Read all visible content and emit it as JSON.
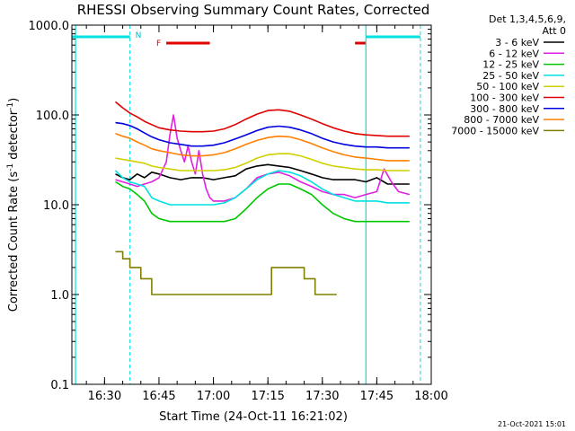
{
  "chart_data": {
    "type": "line",
    "title": "RHESSI Observing Summary Count Rates, Corrected",
    "xlabel": "Start Time (24-Oct-11 16:21:02)",
    "ylabel_main": "Corrected Count Rate (s",
    "ylabel_exp": "-1",
    "ylabel_mid": " detector",
    "ylabel_end": ")",
    "y_scale": "log",
    "ylim": [
      0.1,
      1000
    ],
    "xlim_minutes": [
      0,
      99
    ],
    "x_tick_minutes": [
      9,
      24,
      39,
      54,
      69,
      84,
      99
    ],
    "x_tick_labels": [
      "16:30",
      "16:45",
      "17:00",
      "17:15",
      "17:30",
      "17:45",
      "18:00"
    ],
    "y_ticks": [
      0.1,
      1,
      10,
      100,
      1000
    ],
    "y_tick_labels": [
      "0.1",
      "1.0",
      "10.0",
      "100.0",
      "1000.0"
    ],
    "grid": false,
    "legend_position": "top-right, outside plot",
    "legend_header": [
      "Det 1,3,4,5,6,9,",
      "Att 0"
    ],
    "timestamp": "21-Oct-2021 15:01",
    "series": [
      {
        "name": "3 - 6 keV",
        "color": "#000000",
        "x": [
          12,
          14,
          16,
          18,
          20,
          22,
          24,
          27,
          30,
          33,
          36,
          39,
          42,
          45,
          48,
          51,
          54,
          57,
          60,
          63,
          66,
          69,
          72,
          75,
          78,
          81,
          84,
          87,
          90,
          93
        ],
        "y": [
          22,
          20,
          19,
          22,
          20,
          23,
          22,
          20,
          19,
          20,
          20,
          19,
          20,
          21,
          25,
          27,
          28,
          27,
          26,
          24,
          22,
          20,
          19,
          19,
          19,
          18,
          20,
          17,
          17,
          17
        ]
      },
      {
        "name": "6 - 12 keV",
        "color": "#e020e0",
        "x": [
          12,
          14,
          16,
          18,
          20,
          22,
          24,
          26,
          27,
          28,
          29,
          30,
          31,
          32,
          33,
          34,
          35,
          36,
          37,
          38,
          39,
          42,
          45,
          48,
          51,
          54,
          57,
          60,
          63,
          66,
          69,
          72,
          75,
          78,
          81,
          84,
          86,
          88,
          90,
          93
        ],
        "y": [
          19,
          18,
          17,
          16,
          17,
          18,
          20,
          30,
          60,
          100,
          55,
          40,
          30,
          45,
          30,
          22,
          40,
          22,
          15,
          12,
          11,
          11,
          12,
          15,
          20,
          22,
          23,
          21,
          18,
          16,
          14,
          13,
          13,
          12,
          13,
          14,
          25,
          18,
          14,
          13
        ]
      },
      {
        "name": "12 - 25 keV",
        "color": "#00c800",
        "x": [
          12,
          14,
          16,
          18,
          20,
          22,
          24,
          27,
          30,
          33,
          36,
          39,
          42,
          45,
          48,
          51,
          54,
          57,
          60,
          63,
          66,
          69,
          72,
          75,
          78,
          81,
          84,
          87,
          90,
          93
        ],
        "y": [
          18,
          16,
          15,
          13,
          11,
          8,
          7,
          6.5,
          6.5,
          6.5,
          6.5,
          6.5,
          6.5,
          7,
          9,
          12,
          15,
          17,
          17,
          15,
          13,
          10,
          8,
          7,
          6.5,
          6.5,
          6.5,
          6.5,
          6.5,
          6.5
        ]
      },
      {
        "name": "25 - 50 keV",
        "color": "#00e0e0",
        "x": [
          12,
          14,
          16,
          18,
          20,
          22,
          24,
          27,
          30,
          33,
          36,
          39,
          42,
          45,
          48,
          51,
          54,
          57,
          60,
          63,
          66,
          69,
          72,
          75,
          78,
          81,
          84,
          87,
          90,
          93
        ],
        "y": [
          24,
          20,
          18,
          17,
          16,
          12,
          11,
          10,
          10,
          10,
          10,
          10,
          10.5,
          12,
          15,
          19,
          22,
          24,
          23,
          21,
          18,
          15,
          13,
          12,
          11,
          11,
          11,
          10.5,
          10.5,
          10.5
        ]
      },
      {
        "name": "50 - 100 keV",
        "color": "#d0d000",
        "x": [
          12,
          14,
          16,
          18,
          20,
          22,
          24,
          27,
          30,
          33,
          36,
          39,
          42,
          45,
          48,
          51,
          54,
          57,
          60,
          63,
          66,
          69,
          72,
          75,
          78,
          81,
          84,
          87,
          90,
          93
        ],
        "y": [
          33,
          32,
          31,
          30,
          29,
          27,
          26,
          25,
          24,
          24,
          24,
          24,
          24.5,
          26,
          29,
          33,
          36,
          37,
          37,
          35,
          32,
          29,
          27,
          26,
          25,
          24.5,
          24.5,
          24,
          24,
          24
        ]
      },
      {
        "name": "100 - 300 keV",
        "color": "#e00000",
        "x": [
          12,
          14,
          16,
          18,
          20,
          22,
          24,
          27,
          30,
          33,
          36,
          39,
          42,
          45,
          48,
          51,
          54,
          57,
          60,
          63,
          66,
          69,
          72,
          75,
          78,
          81,
          84,
          87,
          90,
          93
        ],
        "y": [
          140,
          120,
          105,
          95,
          85,
          78,
          72,
          68,
          66,
          65,
          65,
          66,
          70,
          78,
          90,
          102,
          112,
          114,
          110,
          100,
          90,
          80,
          72,
          66,
          62,
          60,
          59,
          58,
          58,
          58
        ]
      },
      {
        "name": "300 - 800 keV",
        "color": "#0000e0",
        "x": [
          12,
          14,
          16,
          18,
          20,
          22,
          24,
          27,
          30,
          33,
          36,
          39,
          42,
          45,
          48,
          51,
          54,
          57,
          60,
          63,
          66,
          69,
          72,
          75,
          78,
          81,
          84,
          87,
          90,
          93
        ],
        "y": [
          82,
          80,
          76,
          70,
          63,
          57,
          53,
          49,
          47,
          45,
          45,
          46,
          49,
          54,
          60,
          67,
          73,
          75,
          73,
          68,
          62,
          55,
          50,
          47,
          45,
          44,
          44,
          43,
          43,
          43
        ]
      },
      {
        "name": "800 - 7000 keV",
        "color": "#ff8000",
        "x": [
          12,
          14,
          16,
          18,
          20,
          22,
          24,
          27,
          30,
          33,
          36,
          39,
          42,
          45,
          48,
          51,
          54,
          57,
          60,
          63,
          66,
          69,
          72,
          75,
          78,
          81,
          84,
          87,
          90,
          93
        ],
        "y": [
          62,
          58,
          55,
          50,
          46,
          42,
          40,
          38,
          36,
          35,
          35,
          36,
          38,
          42,
          47,
          52,
          56,
          58,
          57,
          53,
          48,
          43,
          39,
          36,
          34,
          33,
          32,
          31,
          31,
          31
        ]
      },
      {
        "name": "7000 - 15000 keV",
        "color": "#808000",
        "x": [
          12,
          13,
          14,
          15,
          16,
          17,
          18,
          19,
          20,
          21,
          22,
          25,
          28,
          31,
          34,
          37,
          40,
          43,
          46,
          49,
          52,
          55,
          58,
          61,
          64,
          67,
          70,
          73
        ],
        "y": [
          3,
          3,
          2.5,
          2.5,
          2,
          2,
          2,
          1.5,
          1.5,
          1.5,
          1,
          1,
          1,
          1,
          1,
          1,
          1,
          1,
          1,
          1,
          1,
          2,
          2,
          2,
          1.5,
          1,
          1,
          1
        ]
      }
    ],
    "annotations": {
      "saa_label": "N",
      "flare_label": "F",
      "night_intervals": [
        [
          0,
          16
        ],
        [
          81,
          96
        ]
      ],
      "flare_intervals": [
        [
          26,
          38
        ],
        [
          78,
          81
        ]
      ],
      "dashed_times": [
        16,
        96
      ],
      "solid_times": [
        1,
        81
      ]
    }
  }
}
